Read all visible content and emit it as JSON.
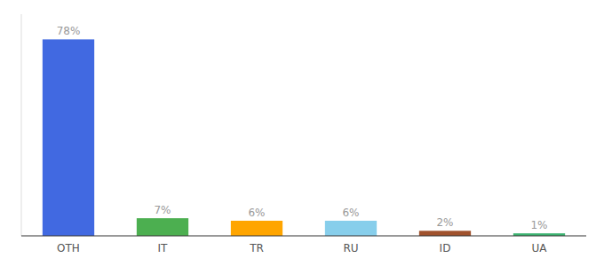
{
  "chart_data": {
    "type": "bar",
    "categories": [
      "OTH",
      "IT",
      "TR",
      "RU",
      "ID",
      "UA"
    ],
    "values": [
      78,
      7,
      6,
      6,
      2,
      1
    ],
    "value_labels": [
      "78%",
      "7%",
      "6%",
      "6%",
      "2%",
      "1%"
    ],
    "colors": [
      "#4169E1",
      "#4CAF50",
      "#FFA500",
      "#87CEEB",
      "#A0522D",
      "#3CB371"
    ],
    "ylim": [
      0,
      88
    ],
    "grid": false,
    "data_labels": true,
    "tick_labels": "x"
  }
}
